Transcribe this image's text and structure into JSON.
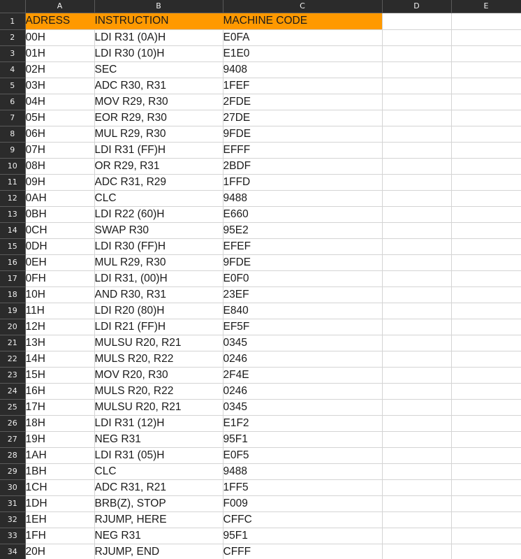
{
  "columns": [
    "A",
    "B",
    "C",
    "D",
    "E"
  ],
  "headers": {
    "address": "ADRESS",
    "instruction": "INSTRUCTION",
    "machine_code": "MACHINE CODE"
  },
  "rows": [
    {
      "num": "1"
    },
    {
      "num": "2",
      "address": "00H",
      "instruction": "LDI R31 (0A)H",
      "code": "E0FA"
    },
    {
      "num": "3",
      "address": "01H",
      "instruction": "LDI R30 (10)H",
      "code": "E1E0"
    },
    {
      "num": "4",
      "address": "02H",
      "instruction": "SEC",
      "code": "9408"
    },
    {
      "num": "5",
      "address": "03H",
      "instruction": "ADC R30, R31",
      "code": "1FEF"
    },
    {
      "num": "6",
      "address": "04H",
      "instruction": "MOV R29, R30",
      "code": "2FDE"
    },
    {
      "num": "7",
      "address": "05H",
      "instruction": "EOR R29, R30",
      "code": "27DE"
    },
    {
      "num": "8",
      "address": "06H",
      "instruction": "MUL R29, R30",
      "code": "9FDE"
    },
    {
      "num": "9",
      "address": "07H",
      "instruction": "LDI R31 (FF)H",
      "code": "EFFF"
    },
    {
      "num": "10",
      "address": "08H",
      "instruction": "OR R29, R31",
      "code": "2BDF"
    },
    {
      "num": "11",
      "address": "09H",
      "instruction": "ADC R31, R29",
      "code": "1FFD"
    },
    {
      "num": "12",
      "address": "0AH",
      "instruction": "CLC",
      "code": "9488"
    },
    {
      "num": "13",
      "address": "0BH",
      "instruction": "LDI R22 (60)H",
      "code": "E660"
    },
    {
      "num": "14",
      "address": "0CH",
      "instruction": "SWAP R30",
      "code": "95E2"
    },
    {
      "num": "15",
      "address": "0DH",
      "instruction": "LDI R30 (FF)H",
      "code": "EFEF"
    },
    {
      "num": "16",
      "address": "0EH",
      "instruction": "MUL R29, R30",
      "code": "9FDE"
    },
    {
      "num": "17",
      "address": "0FH",
      "instruction": "LDI R31, (00)H",
      "code": "E0F0"
    },
    {
      "num": "18",
      "address": "10H",
      "instruction": "AND R30, R31",
      "code": "23EF"
    },
    {
      "num": "19",
      "address": "11H",
      "instruction": "LDI R20 (80)H",
      "code": "E840"
    },
    {
      "num": "20",
      "address": "12H",
      "instruction": "LDI R21 (FF)H",
      "code": "EF5F"
    },
    {
      "num": "21",
      "address": "13H",
      "instruction": "MULSU R20, R21",
      "code": "0345"
    },
    {
      "num": "22",
      "address": "14H",
      "instruction": "MULS R20, R22",
      "code": "0246"
    },
    {
      "num": "23",
      "address": "15H",
      "instruction": "MOV R20, R30",
      "code": "2F4E"
    },
    {
      "num": "24",
      "address": "16H",
      "instruction": "MULS R20, R22",
      "code": "0246"
    },
    {
      "num": "25",
      "address": "17H",
      "instruction": "MULSU R20, R21",
      "code": "0345"
    },
    {
      "num": "26",
      "address": "18H",
      "instruction": "LDI R31 (12)H",
      "code": "E1F2"
    },
    {
      "num": "27",
      "address": "19H",
      "instruction": "NEG R31",
      "code": "95F1"
    },
    {
      "num": "28",
      "address": "1AH",
      "instruction": "LDI R31 (05)H",
      "code": "E0F5"
    },
    {
      "num": "29",
      "address": "1BH",
      "instruction": "CLC",
      "code": "9488"
    },
    {
      "num": "30",
      "address": "1CH",
      "instruction": "ADC R31, R21",
      "code": "1FF5"
    },
    {
      "num": "31",
      "address": "1DH",
      "instruction": "BRB(Z), STOP",
      "code": "F009"
    },
    {
      "num": "32",
      "address": "1EH",
      "instruction": "RJUMP, HERE",
      "code": "CFFC"
    },
    {
      "num": "33",
      "address": "1FH",
      "instruction": "NEG R31",
      "code": "95F1"
    },
    {
      "num": "34",
      "address": "20H",
      "instruction": "RJUMP, END",
      "code": "CFFF"
    }
  ],
  "colors": {
    "header_fill": "#ff9900",
    "header_strip": "#2b2b2b",
    "gridline": "#d4d4d4"
  }
}
